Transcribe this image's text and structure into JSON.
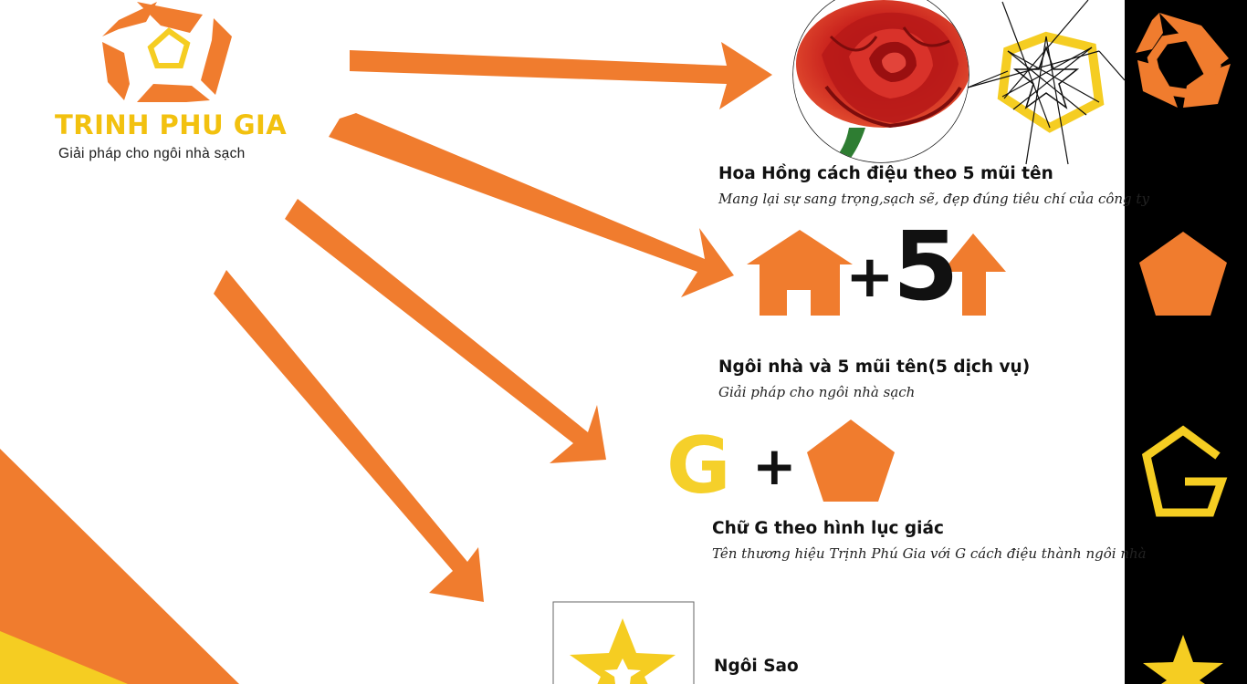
{
  "brand": {
    "name": "TRINH PHU GIA",
    "tagline": "Giải pháp cho ngôi nhà sạch",
    "logo_mark": "G"
  },
  "sections": [
    {
      "title": "Hoa Hồng cách điệu theo 5 mũi tên",
      "subtitle": "Mang lại sự sang trọng,sạch sẽ, đẹp đúng tiêu chí của công ty"
    },
    {
      "title": "Ngôi nhà và 5 mũi tên(5 dịch vụ)",
      "subtitle": "Giải pháp cho ngôi nhà sạch",
      "equation_plus": "+",
      "equation_number": "5"
    },
    {
      "title": "Chữ G theo hình lục giác",
      "subtitle": "Tên thương hiệu Trịnh Phú Gia với G cách điệu thành ngôi nhà",
      "equation_letter": "G",
      "equation_plus": "+"
    },
    {
      "title": "Ngôi Sao",
      "subtitle": ""
    }
  ],
  "colors": {
    "orange": "#f07c2e",
    "yellow": "#f5cd22",
    "black": "#000000",
    "text": "#111111",
    "rose_red": "#c8201c"
  },
  "icons": [
    "logo-pentagon-g-icon",
    "rose-photo",
    "star-polygon-icon",
    "house-icon",
    "up-arrow-icon",
    "pentagon-icon",
    "g-pentagon-outline-icon",
    "star-icon"
  ]
}
